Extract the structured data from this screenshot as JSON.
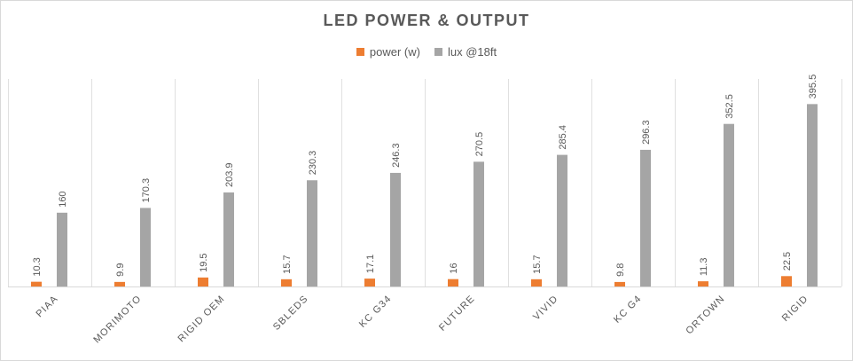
{
  "chart_data": {
    "type": "bar",
    "title": "LED POWER & OUTPUT",
    "xlabel": "",
    "ylabel": "",
    "categories": [
      "PIAA",
      "MORIMOTO",
      "RIGID OEM",
      "SBLEDS",
      "KC G34",
      "FUTURE",
      "VIVID",
      "KC G4",
      "ORTOWN",
      "RIGID"
    ],
    "series": [
      {
        "name": "power (w)",
        "values": [
          10.3,
          9.9,
          19.5,
          15.7,
          17.1,
          16,
          15.7,
          9.8,
          11.3,
          22.5
        ],
        "color": "#ED7D31"
      },
      {
        "name": "lux @18ft",
        "values": [
          160,
          170.3,
          203.9,
          230.3,
          246.3,
          270.5,
          285.4,
          296.3,
          352.5,
          395.5
        ],
        "color": "#A5A5A5"
      }
    ],
    "ylim": [
      0,
      450
    ],
    "grid": "vertical category separators",
    "legend": "top-center"
  }
}
